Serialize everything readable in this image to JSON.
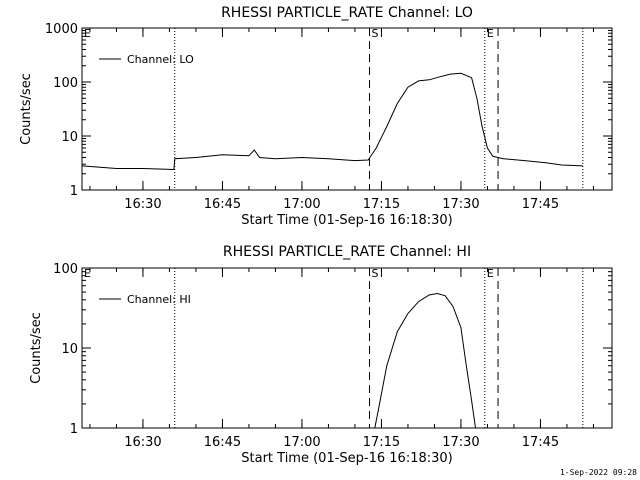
{
  "chart_data": [
    {
      "type": "line",
      "title": "RHESSI PARTICLE_RATE Channel: LO",
      "xlabel": "Start Time (01-Sep-16 16:18:30)",
      "ylabel": "Counts/sec",
      "yscale": "log",
      "ylim": [
        1,
        1000
      ],
      "y_ticks": [
        {
          "value": 1,
          "label": "1"
        },
        {
          "value": 10,
          "label": "10"
        },
        {
          "value": 100,
          "label": "100"
        },
        {
          "value": 1000,
          "label": "1000"
        }
      ],
      "xlim": [
        "16:18:30",
        "17:58:30"
      ],
      "x_ticks": [
        "16:30",
        "16:45",
        "17:00",
        "17:15",
        "17:30",
        "17:45"
      ],
      "legend": {
        "placement": "top-left",
        "entries": [
          "Channel: LO"
        ]
      },
      "markers": [
        {
          "time": "16:36:00",
          "style": "dotted",
          "label": ""
        },
        {
          "time": "17:12:45",
          "style": "dashed",
          "label": "S"
        },
        {
          "time": "17:34:30",
          "style": "dotted",
          "label": "E"
        },
        {
          "time": "17:37:00",
          "style": "dashed",
          "label": ""
        },
        {
          "time": "17:53:00",
          "style": "dotted",
          "label": ""
        },
        {
          "time": "16:18:30",
          "style": "none",
          "label": "E"
        }
      ],
      "series": [
        {
          "name": "Channel: LO",
          "x": [
            "16:18:30",
            "16:25:00",
            "16:30:00",
            "16:35:50",
            "16:36:00",
            "16:40:00",
            "16:45:00",
            "16:50:00",
            "16:51:00",
            "16:52:00",
            "16:55:00",
            "17:00:00",
            "17:05:00",
            "17:10:00",
            "17:12:30",
            "17:14:00",
            "17:16:00",
            "17:18:00",
            "17:20:00",
            "17:22:00",
            "17:24:00",
            "17:26:00",
            "17:28:00",
            "17:30:00",
            "17:32:00",
            "17:33:00",
            "17:34:00",
            "17:35:00",
            "17:36:00",
            "17:38:00",
            "17:42:00",
            "17:46:00",
            "17:48:00",
            "17:49:00",
            "17:53:00"
          ],
          "values": [
            2.8,
            2.5,
            2.5,
            2.4,
            3.8,
            4.0,
            4.5,
            4.3,
            5.5,
            4.0,
            3.8,
            4.0,
            3.8,
            3.5,
            3.6,
            6,
            15,
            40,
            80,
            105,
            110,
            125,
            140,
            145,
            120,
            50,
            15,
            6,
            4.2,
            3.8,
            3.5,
            3.2,
            3.0,
            2.9,
            2.8
          ]
        }
      ]
    },
    {
      "type": "line",
      "title": "RHESSI PARTICLE_RATE Channel: HI",
      "xlabel": "Start Time (01-Sep-16 16:18:30)",
      "ylabel": "Counts/sec",
      "yscale": "log",
      "ylim": [
        1,
        100
      ],
      "y_ticks": [
        {
          "value": 1,
          "label": "1"
        },
        {
          "value": 10,
          "label": "10"
        },
        {
          "value": 100,
          "label": "100"
        }
      ],
      "xlim": [
        "16:18:30",
        "17:58:30"
      ],
      "x_ticks": [
        "16:30",
        "16:45",
        "17:00",
        "17:15",
        "17:30",
        "17:45"
      ],
      "legend": {
        "placement": "top-left",
        "entries": [
          "Channel: HI"
        ]
      },
      "markers": [
        {
          "time": "16:36:00",
          "style": "dotted",
          "label": ""
        },
        {
          "time": "17:12:45",
          "style": "dashed",
          "label": "S"
        },
        {
          "time": "17:34:30",
          "style": "dotted",
          "label": "E"
        },
        {
          "time": "17:37:00",
          "style": "dashed",
          "label": ""
        },
        {
          "time": "17:53:00",
          "style": "dotted",
          "label": ""
        },
        {
          "time": "16:18:30",
          "style": "none",
          "label": "E"
        }
      ],
      "series": [
        {
          "name": "Channel: HI",
          "x": [
            "17:13:45",
            "17:14:30",
            "17:16:00",
            "17:18:00",
            "17:20:00",
            "17:22:00",
            "17:24:00",
            "17:25:30",
            "17:27:00",
            "17:28:30",
            "17:30:00",
            "17:31:00",
            "17:32:00",
            "17:32:45"
          ],
          "values": [
            1.0,
            1.8,
            6,
            16,
            27,
            38,
            46,
            48,
            45,
            33,
            18,
            6,
            2.2,
            1.0
          ]
        }
      ]
    }
  ],
  "footer": "1-Sep-2022 09:28"
}
